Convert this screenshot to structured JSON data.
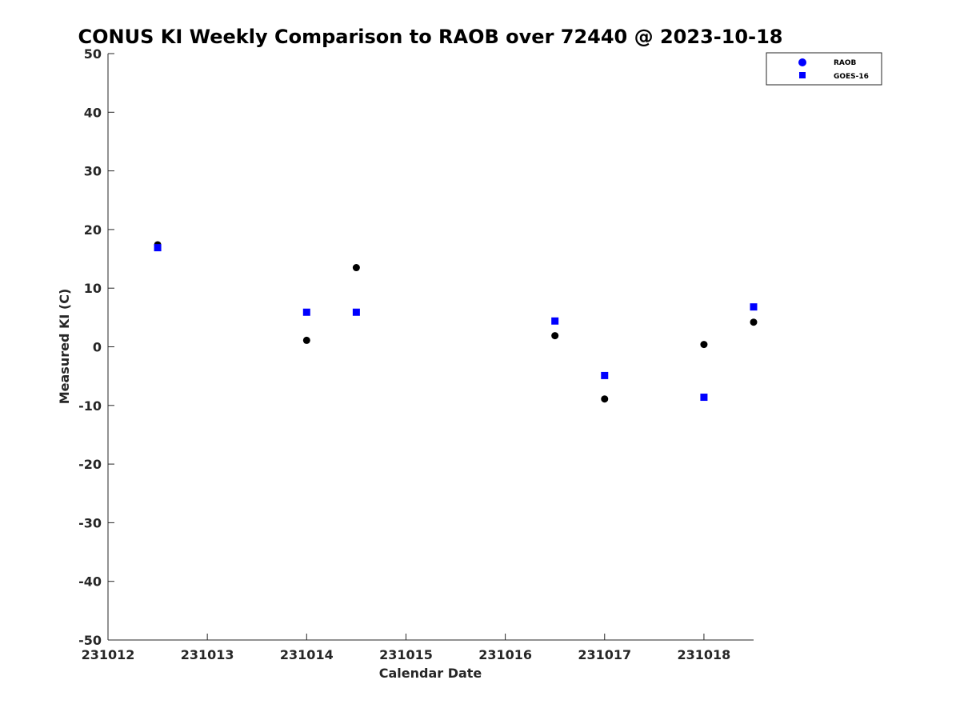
{
  "chart_data": {
    "type": "scatter",
    "title": "CONUS KI Weekly Comparison to RAOB over 72440 @ 2023-10-18",
    "xlabel": "Calendar Date",
    "ylabel": "Measured KI (C)",
    "x_tick_labels": [
      "231012",
      "231013",
      "231014",
      "231015",
      "231016",
      "231017",
      "231018"
    ],
    "x_tick_values": [
      0,
      1,
      2,
      3,
      4,
      5,
      6
    ],
    "xlim": [
      0,
      6.5
    ],
    "ylim": [
      -50,
      50
    ],
    "y_ticks": [
      -50,
      -40,
      -30,
      -20,
      -10,
      0,
      10,
      20,
      30,
      40,
      50
    ],
    "legend_position": "top-right",
    "grid": false,
    "series": [
      {
        "name": "RAOB",
        "marker": "circle",
        "color": "#000000",
        "legend_color": "#0000ff",
        "x": [
          0.5,
          2.0,
          2.5,
          4.5,
          5.0,
          6.0,
          6.5
        ],
        "y": [
          17.4,
          1.1,
          13.5,
          1.9,
          -8.9,
          0.4,
          4.2
        ]
      },
      {
        "name": "GOES-16",
        "marker": "square",
        "color": "#0000ff",
        "legend_color": "#0000ff",
        "x": [
          0.5,
          2.0,
          2.5,
          4.5,
          5.0,
          6.0,
          6.5
        ],
        "y": [
          16.9,
          5.9,
          5.9,
          4.4,
          -4.9,
          -8.6,
          6.8
        ]
      }
    ]
  }
}
